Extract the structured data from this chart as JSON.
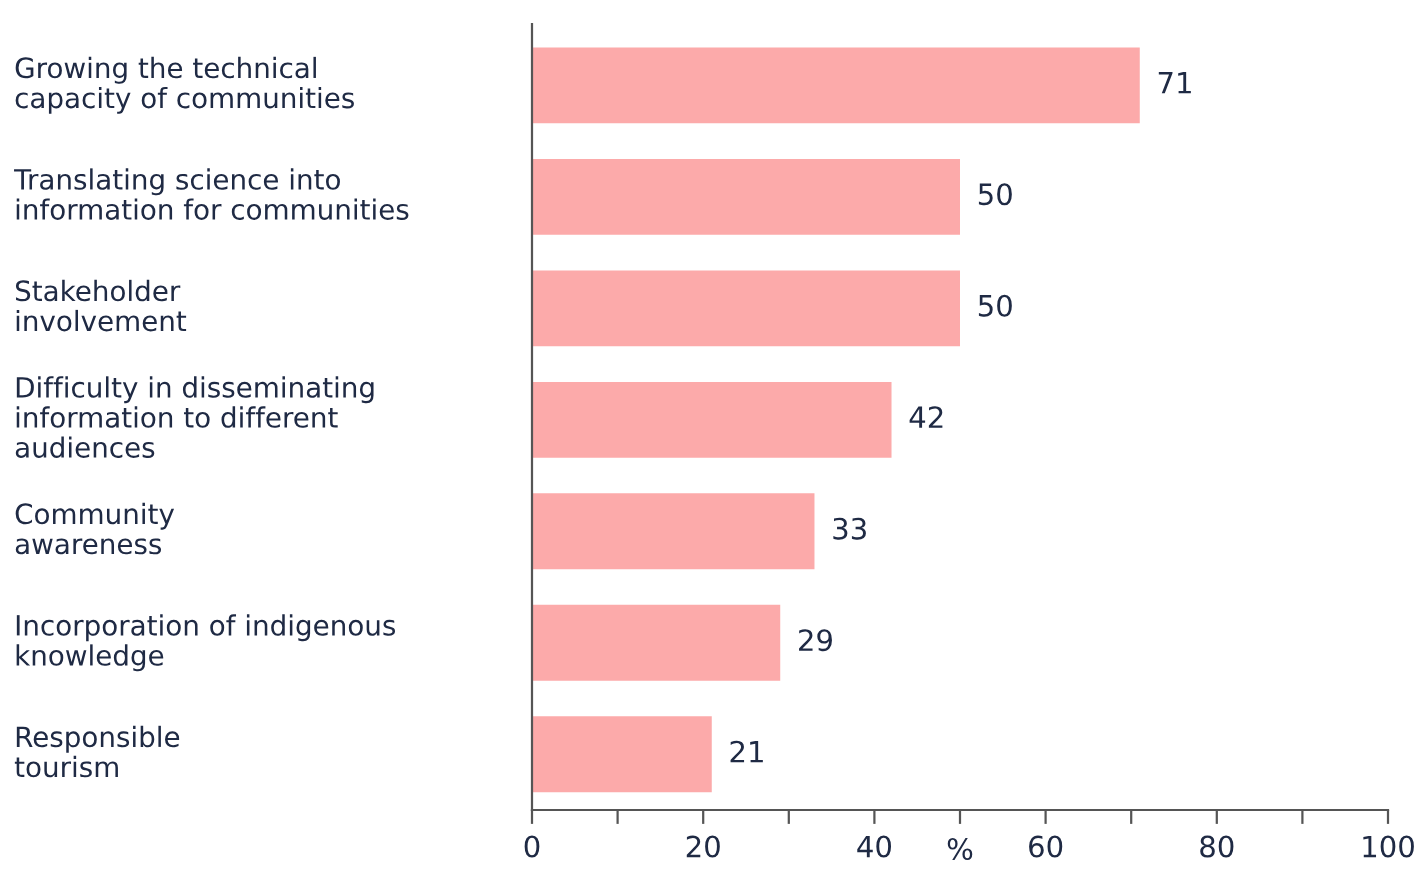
{
  "chart_data": {
    "type": "bar",
    "orientation": "horizontal",
    "categories": [
      "Growing the technical\ncapacity of communities",
      "Translating science into\ninformation for communities",
      "Stakeholder\ninvolvement",
      "Difficulty in disseminating\ninformation to different\naudiences",
      "Community\nawareness",
      "Incorporation of indigenous\nknowledge",
      "Responsible\ntourism"
    ],
    "values": [
      71,
      50,
      50,
      42,
      33,
      29,
      21
    ],
    "color": "#fcaaaa",
    "data_labels": true,
    "xlabel": "%",
    "xlim": [
      0,
      100
    ],
    "xticks": [
      0,
      {
        "value": 10,
        "label": null
      },
      20,
      {
        "value": 30,
        "label": null
      },
      40,
      {
        "value": 50,
        "label": null
      },
      60,
      {
        "value": 70,
        "label": null
      },
      80,
      {
        "value": 90,
        "label": null
      },
      100
    ],
    "grid": false
  }
}
